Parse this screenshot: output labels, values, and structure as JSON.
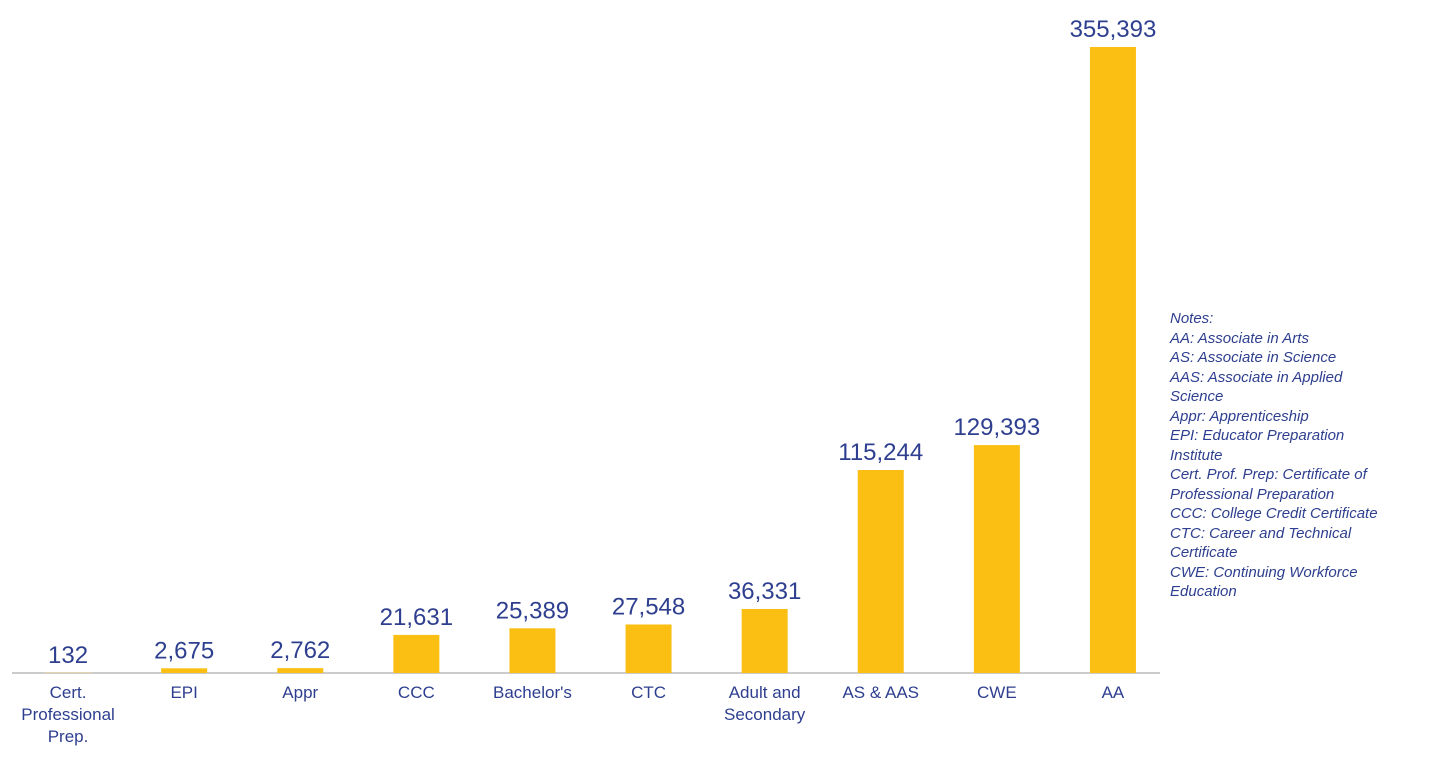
{
  "chart_data": {
    "type": "bar",
    "categories": [
      "Cert. Professional Prep.",
      "EPI",
      "Appr",
      "CCC",
      "Bachelor's",
      "CTC",
      "Adult and Secondary",
      "AS & AAS",
      "CWE",
      "AA"
    ],
    "values": [
      132,
      2675,
      2762,
      21631,
      25389,
      27548,
      36331,
      115244,
      129393,
      355393
    ],
    "value_labels": [
      "132",
      "2,675",
      "2,762",
      "21,631",
      "25,389",
      "27,548",
      "36,331",
      "115,244",
      "129,393",
      "355,393"
    ],
    "color": "#fbbf14",
    "notes": {
      "title": "Notes:",
      "items": [
        "AA: Associate in Arts",
        "AS: Associate in Science",
        "AAS: Associate in Applied Science",
        "Appr: Apprenticeship",
        "EPI: Educator Preparation Institute",
        "Cert. Prof. Prep: Certificate of Professional Preparation",
        "CCC: College Credit Certificate",
        "CTC: Career and Technical Certificate",
        "CWE: Continuing Workforce Education"
      ]
    }
  }
}
